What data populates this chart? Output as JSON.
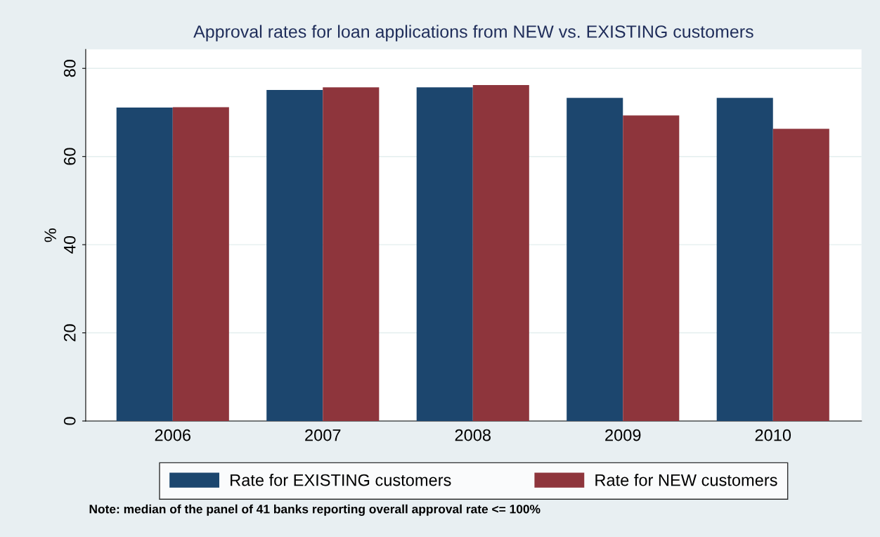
{
  "chart_data": {
    "type": "bar",
    "title": "Approval rates for loan applications from NEW vs. EXISTING customers",
    "ylabel": "%",
    "categories": [
      "2006",
      "2007",
      "2008",
      "2009",
      "2010"
    ],
    "series": [
      {
        "name": "Rate for EXISTING customers",
        "color": "#1c466e",
        "values": [
          71.1,
          75.1,
          75.7,
          73.3,
          73.3
        ]
      },
      {
        "name": "Rate for NEW customers",
        "color": "#8e353c",
        "values": [
          71.2,
          75.7,
          76.2,
          69.3,
          66.3
        ]
      }
    ],
    "ylim": [
      0,
      84.3
    ],
    "yticks": [
      0,
      20,
      40,
      60,
      80
    ],
    "grid": "y",
    "legend": "bottom",
    "annotations": [
      "Note: median of the panel of 41 banks reporting overall approval rate <= 100%"
    ]
  }
}
